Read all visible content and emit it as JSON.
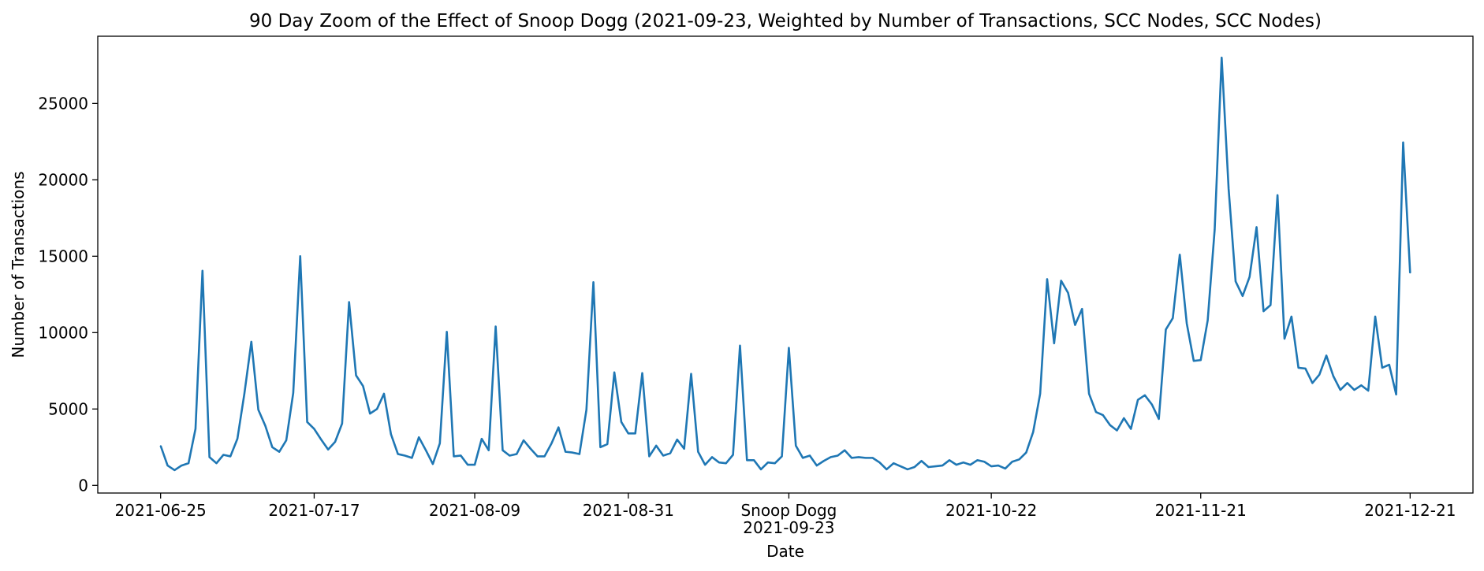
{
  "chart_data": {
    "type": "line",
    "title": "90 Day Zoom of the Effect of Snoop Dogg (2021-09-23, Weighted by Number of Transactions, SCC Nodes, SCC Nodes)",
    "xlabel": "Date",
    "ylabel": "Number of Transactions",
    "ylim": [
      -500,
      29400
    ],
    "xlim": [
      "2021-06-16",
      "2021-12-30"
    ],
    "grid": false,
    "event": {
      "label": "Snoop Dogg",
      "date": "2021-09-23"
    },
    "y_ticks": [
      0,
      5000,
      10000,
      15000,
      20000,
      25000
    ],
    "x_ticks": [
      {
        "date": "2021-06-25",
        "label": "2021-06-25"
      },
      {
        "date": "2021-07-17",
        "label": "2021-07-17"
      },
      {
        "date": "2021-08-09",
        "label": "2021-08-09"
      },
      {
        "date": "2021-08-31",
        "label": "2021-08-31"
      },
      {
        "date": "2021-10-22",
        "label": "2021-10-22"
      },
      {
        "date": "2021-11-21",
        "label": "2021-11-21"
      },
      {
        "date": "2021-12-21",
        "label": "2021-12-21"
      }
    ],
    "series": [
      {
        "color": "#1f77b4",
        "x": [
          "2021-06-25",
          "2021-06-26",
          "2021-06-27",
          "2021-06-28",
          "2021-06-29",
          "2021-06-30",
          "2021-07-01",
          "2021-07-02",
          "2021-07-03",
          "2021-07-04",
          "2021-07-05",
          "2021-07-06",
          "2021-07-07",
          "2021-07-08",
          "2021-07-09",
          "2021-07-10",
          "2021-07-11",
          "2021-07-12",
          "2021-07-13",
          "2021-07-14",
          "2021-07-15",
          "2021-07-16",
          "2021-07-17",
          "2021-07-18",
          "2021-07-19",
          "2021-07-20",
          "2021-07-21",
          "2021-07-22",
          "2021-07-23",
          "2021-07-24",
          "2021-07-25",
          "2021-07-26",
          "2021-07-27",
          "2021-07-28",
          "2021-07-29",
          "2021-07-30",
          "2021-07-31",
          "2021-08-01",
          "2021-08-02",
          "2021-08-03",
          "2021-08-04",
          "2021-08-05",
          "2021-08-06",
          "2021-08-07",
          "2021-08-08",
          "2021-08-09",
          "2021-08-10",
          "2021-08-11",
          "2021-08-12",
          "2021-08-13",
          "2021-08-14",
          "2021-08-15",
          "2021-08-16",
          "2021-08-17",
          "2021-08-18",
          "2021-08-19",
          "2021-08-20",
          "2021-08-21",
          "2021-08-22",
          "2021-08-23",
          "2021-08-24",
          "2021-08-25",
          "2021-08-26",
          "2021-08-27",
          "2021-08-28",
          "2021-08-29",
          "2021-08-30",
          "2021-08-31",
          "2021-09-01",
          "2021-09-02",
          "2021-09-03",
          "2021-09-04",
          "2021-09-05",
          "2021-09-06",
          "2021-09-07",
          "2021-09-08",
          "2021-09-09",
          "2021-09-10",
          "2021-09-11",
          "2021-09-12",
          "2021-09-13",
          "2021-09-14",
          "2021-09-15",
          "2021-09-16",
          "2021-09-17",
          "2021-09-18",
          "2021-09-19",
          "2021-09-20",
          "2021-09-21",
          "2021-09-22",
          "2021-09-23",
          "2021-09-24",
          "2021-09-25",
          "2021-09-26",
          "2021-09-27",
          "2021-09-28",
          "2021-09-29",
          "2021-09-30",
          "2021-10-01",
          "2021-10-02",
          "2021-10-03",
          "2021-10-04",
          "2021-10-05",
          "2021-10-06",
          "2021-10-07",
          "2021-10-08",
          "2021-10-09",
          "2021-10-10",
          "2021-10-11",
          "2021-10-12",
          "2021-10-13",
          "2021-10-14",
          "2021-10-15",
          "2021-10-16",
          "2021-10-17",
          "2021-10-18",
          "2021-10-19",
          "2021-10-20",
          "2021-10-21",
          "2021-10-22",
          "2021-10-23",
          "2021-10-24",
          "2021-10-25",
          "2021-10-26",
          "2021-10-27",
          "2021-10-28",
          "2021-10-29",
          "2021-10-30",
          "2021-10-31",
          "2021-11-01",
          "2021-11-02",
          "2021-11-03",
          "2021-11-04",
          "2021-11-05",
          "2021-11-06",
          "2021-11-07",
          "2021-11-08",
          "2021-11-09",
          "2021-11-10",
          "2021-11-11",
          "2021-11-12",
          "2021-11-13",
          "2021-11-14",
          "2021-11-15",
          "2021-11-16",
          "2021-11-17",
          "2021-11-18",
          "2021-11-19",
          "2021-11-20",
          "2021-11-21",
          "2021-11-22",
          "2021-11-23",
          "2021-11-24",
          "2021-11-25",
          "2021-11-26",
          "2021-11-27",
          "2021-11-28",
          "2021-11-29",
          "2021-11-30",
          "2021-12-01",
          "2021-12-02",
          "2021-12-03",
          "2021-12-04",
          "2021-12-05",
          "2021-12-06",
          "2021-12-07",
          "2021-12-08",
          "2021-12-09",
          "2021-12-10",
          "2021-12-11",
          "2021-12-12",
          "2021-12-13",
          "2021-12-14",
          "2021-12-15",
          "2021-12-16",
          "2021-12-17",
          "2021-12-18",
          "2021-12-19",
          "2021-12-20",
          "2021-12-21"
        ],
        "y": [
          2600,
          1300,
          1000,
          1300,
          1450,
          3700,
          14050,
          1850,
          1450,
          2000,
          1900,
          3050,
          6000,
          9400,
          4950,
          3900,
          2500,
          2200,
          2950,
          6050,
          15000,
          4150,
          3700,
          3000,
          2350,
          2850,
          4050,
          12000,
          7200,
          6500,
          4700,
          5000,
          6000,
          3350,
          2050,
          1950,
          1800,
          3150,
          2300,
          1400,
          2750,
          10050,
          1900,
          1950,
          1350,
          1350,
          3050,
          2300,
          10400,
          2300,
          1950,
          2050,
          2950,
          2400,
          1900,
          1900,
          2750,
          3800,
          2200,
          2150,
          2050,
          4950,
          13300,
          2500,
          2700,
          7400,
          4150,
          3400,
          3400,
          7350,
          1900,
          2600,
          1950,
          2100,
          3000,
          2400,
          7300,
          2200,
          1350,
          1850,
          1500,
          1450,
          2000,
          9150,
          1650,
          1650,
          1050,
          1500,
          1450,
          1900,
          9000,
          2600,
          1800,
          1950,
          1300,
          1600,
          1850,
          1950,
          2300,
          1800,
          1850,
          1800,
          1800,
          1500,
          1050,
          1450,
          1250,
          1050,
          1200,
          1600,
          1200,
          1250,
          1300,
          1650,
          1350,
          1500,
          1350,
          1650,
          1550,
          1250,
          1300,
          1100,
          1550,
          1700,
          2150,
          3500,
          6000,
          13500,
          9300,
          13400,
          12600,
          10500,
          11550,
          6000,
          4800,
          4600,
          3950,
          3600,
          4400,
          3700,
          5600,
          5900,
          5300,
          4350,
          10200,
          10950,
          15100,
          10600,
          8150,
          8200,
          10800,
          16750,
          28000,
          19400,
          13350,
          12400,
          13650,
          16900,
          11400,
          11800,
          19000,
          9600,
          11050,
          7700,
          7650,
          6700,
          7250,
          8500,
          7150,
          6250,
          6700,
          6250,
          6550,
          6200,
          11050,
          7700,
          7900,
          5950,
          22450,
          13900
        ]
      }
    ]
  }
}
